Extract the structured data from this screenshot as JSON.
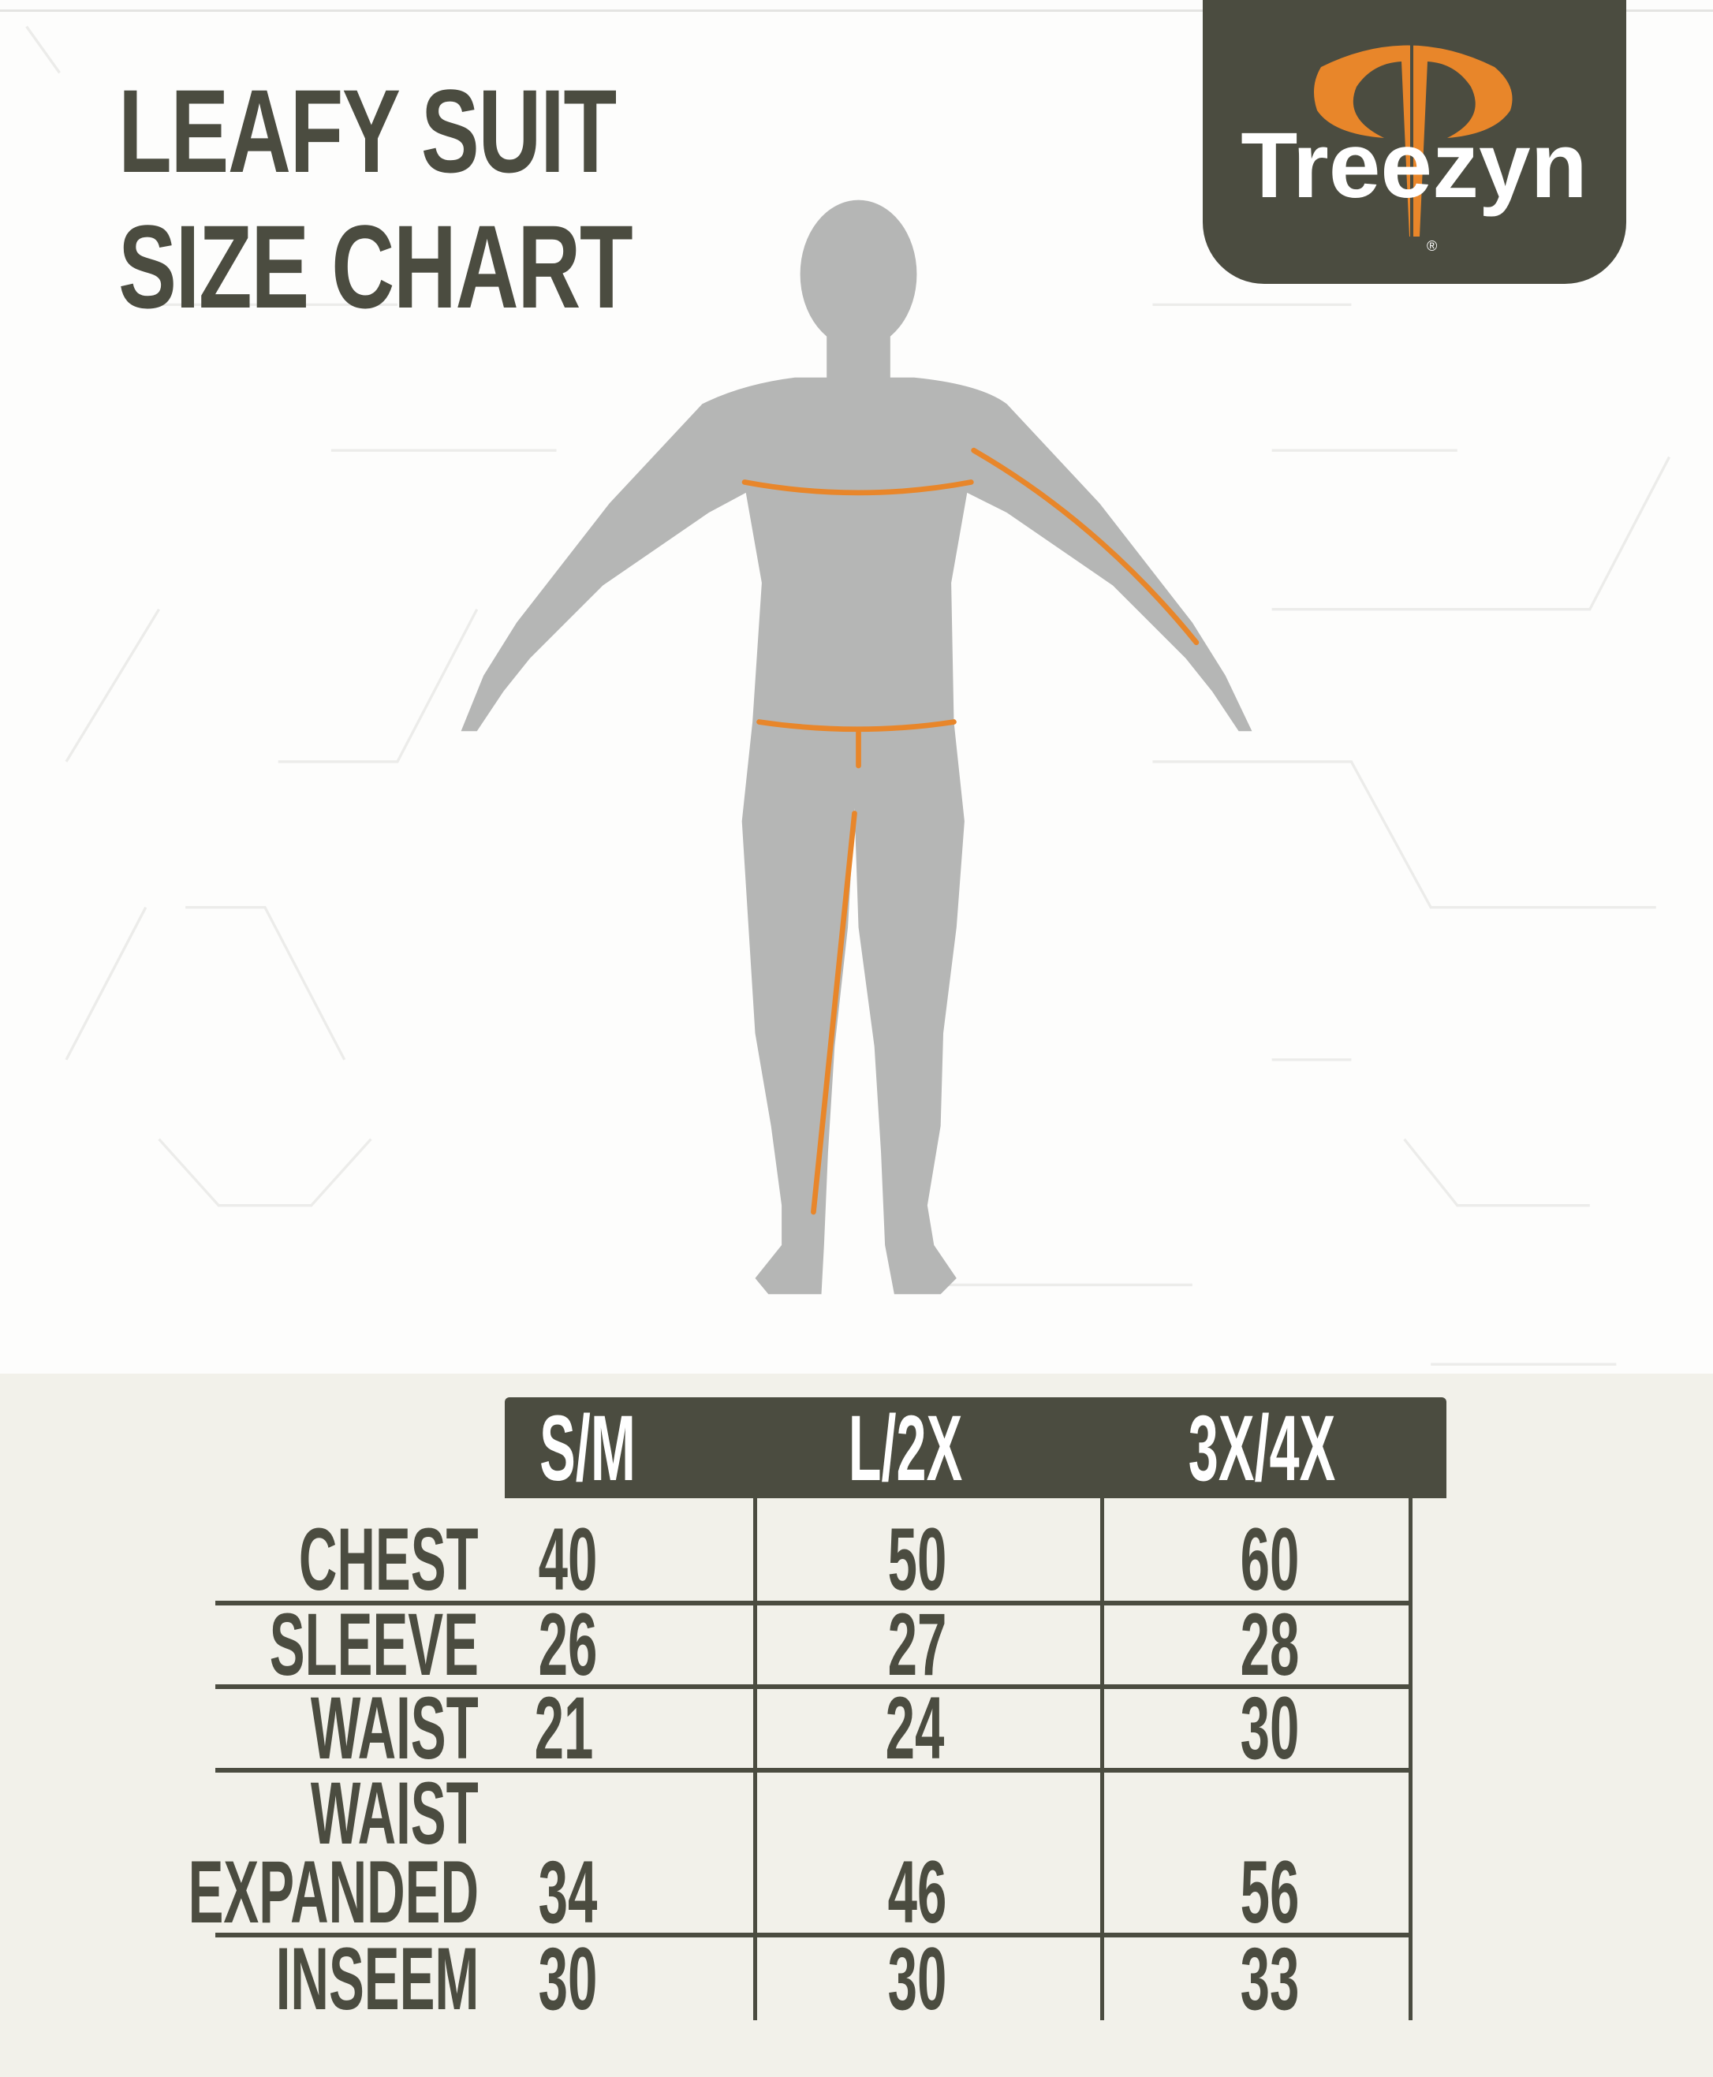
{
  "header": {
    "title_line1": "LEAFY SUIT",
    "title_line2": "SIZE CHART"
  },
  "logo": {
    "brand": "Treezyn",
    "registered": "®",
    "colors": {
      "background": "#4b4c40",
      "accent": "#e8862a",
      "text": "#ffffff"
    }
  },
  "figure": {
    "icon": "human-silhouette-icon",
    "measure_color": "#e8862a",
    "body_color": "#b5b6b5"
  },
  "table": {
    "columns": [
      "S/M",
      "L/2X",
      "3X/4X"
    ],
    "rows": [
      {
        "label": "CHEST",
        "values": [
          "40",
          "50",
          "60"
        ]
      },
      {
        "label": "SLEEVE",
        "values": [
          "26",
          "27",
          "28"
        ]
      },
      {
        "label": "WAIST",
        "values": [
          "21",
          "24",
          "30"
        ]
      },
      {
        "label_line1": "WAIST",
        "label_line2": "EXPANDED",
        "values": [
          "34",
          "46",
          "56"
        ]
      },
      {
        "label": "INSEEM",
        "values": [
          "30",
          "30",
          "33"
        ]
      }
    ]
  }
}
